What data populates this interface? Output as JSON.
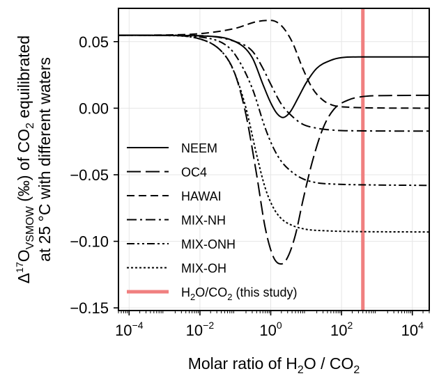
{
  "chart_data": {
    "type": "line",
    "x_scale": "log",
    "xlim": [
      5e-05,
      30000
    ],
    "ylim": [
      -0.152,
      0.075
    ],
    "grid": true,
    "legend_position": "lower-left",
    "x_ticks": [
      {
        "value": 0.0001,
        "base": "10",
        "exp": "−4"
      },
      {
        "value": 0.01,
        "base": "10",
        "exp": "−2"
      },
      {
        "value": 1,
        "base": "10",
        "exp": "0"
      },
      {
        "value": 100,
        "base": "10",
        "exp": "2"
      },
      {
        "value": 10000,
        "base": "10",
        "exp": "4"
      }
    ],
    "y_ticks": [
      {
        "value": 0.05,
        "label": "0.05"
      },
      {
        "value": 0.0,
        "label": "0.00"
      },
      {
        "value": -0.05,
        "label": "−0.05"
      },
      {
        "value": -0.1,
        "label": "−0.10"
      },
      {
        "value": -0.15,
        "label": "−0.15"
      }
    ],
    "xlabel": {
      "pre": "Molar ratio of H",
      "sub1": "2",
      "mid": "O / CO",
      "sub2": "2"
    },
    "ylabel": {
      "line1_pre": "Δ",
      "line1_sup": "17",
      "line1_O": "O",
      "line1_sub": "VSMOW",
      "line1_mid": " (‰) of CO",
      "line1_sub2": "2",
      "line1_post": " equilibrated",
      "line2": "at 25 °C with different waters"
    },
    "series": [
      {
        "name": "NEEM",
        "dash": "none",
        "points": [
          [
            5e-05,
            0.0548
          ],
          [
            0.0001,
            0.0548
          ],
          [
            0.001,
            0.0547
          ],
          [
            0.01,
            0.0543
          ],
          [
            0.1,
            0.05
          ],
          [
            0.3,
            0.038
          ],
          [
            0.6,
            0.018
          ],
          [
            1.0,
            0.004
          ],
          [
            1.5,
            -0.004
          ],
          [
            2.2,
            -0.007
          ],
          [
            3.5,
            -0.003
          ],
          [
            6,
            0.008
          ],
          [
            10,
            0.019
          ],
          [
            20,
            0.03
          ],
          [
            50,
            0.036
          ],
          [
            100,
            0.038
          ],
          [
            300,
            0.0385
          ],
          [
            1000,
            0.0385
          ],
          [
            30000,
            0.0385
          ]
        ]
      },
      {
        "name": "OC4",
        "dash": "20 7",
        "points": [
          [
            5e-05,
            0.0548
          ],
          [
            0.001,
            0.0547
          ],
          [
            0.01,
            0.052
          ],
          [
            0.05,
            0.04
          ],
          [
            0.1,
            0.025
          ],
          [
            0.2,
            -0.005
          ],
          [
            0.4,
            -0.05
          ],
          [
            0.7,
            -0.09
          ],
          [
            1.2,
            -0.112
          ],
          [
            2,
            -0.117
          ],
          [
            3,
            -0.112
          ],
          [
            5,
            -0.095
          ],
          [
            8,
            -0.07
          ],
          [
            15,
            -0.04
          ],
          [
            30,
            -0.015
          ],
          [
            60,
            -0.001
          ],
          [
            150,
            0.006
          ],
          [
            500,
            0.009
          ],
          [
            2000,
            0.0095
          ],
          [
            30000,
            0.0097
          ]
        ]
      },
      {
        "name": "HAWAI",
        "dash": "11 6",
        "points": [
          [
            5e-05,
            0.0548
          ],
          [
            0.001,
            0.055
          ],
          [
            0.01,
            0.056
          ],
          [
            0.1,
            0.06
          ],
          [
            0.4,
            0.065
          ],
          [
            1.0,
            0.066
          ],
          [
            2,
            0.062
          ],
          [
            4,
            0.05
          ],
          [
            8,
            0.03
          ],
          [
            15,
            0.015
          ],
          [
            30,
            0.006
          ],
          [
            60,
            0.002
          ],
          [
            150,
            0.0008
          ],
          [
            500,
            0.0003
          ],
          [
            30000,
            0.0
          ]
        ]
      },
      {
        "name": "MIX-NH",
        "dash": "14 5 3 5",
        "points": [
          [
            5e-05,
            0.0548
          ],
          [
            0.001,
            0.0548
          ],
          [
            0.01,
            0.0545
          ],
          [
            0.1,
            0.05
          ],
          [
            0.3,
            0.043
          ],
          [
            0.6,
            0.03
          ],
          [
            1.0,
            0.018
          ],
          [
            2,
            0.003
          ],
          [
            4,
            -0.006
          ],
          [
            8,
            -0.012
          ],
          [
            20,
            -0.015
          ],
          [
            60,
            -0.0165
          ],
          [
            300,
            -0.017
          ],
          [
            30000,
            -0.0172
          ]
        ]
      },
      {
        "name": "MIX-ONH",
        "dash": "11 4 3 4 3 4",
        "points": [
          [
            5e-05,
            0.0548
          ],
          [
            0.001,
            0.0547
          ],
          [
            0.01,
            0.0535
          ],
          [
            0.05,
            0.048
          ],
          [
            0.1,
            0.04
          ],
          [
            0.3,
            0.015
          ],
          [
            0.7,
            -0.015
          ],
          [
            1.2,
            -0.03
          ],
          [
            2,
            -0.04
          ],
          [
            4,
            -0.048
          ],
          [
            8,
            -0.053
          ],
          [
            20,
            -0.056
          ],
          [
            60,
            -0.057
          ],
          [
            300,
            -0.0575
          ],
          [
            30000,
            -0.058
          ]
        ]
      },
      {
        "name": "MIX-OH",
        "dash": "3 3",
        "points": [
          [
            5e-05,
            0.0548
          ],
          [
            0.001,
            0.0546
          ],
          [
            0.01,
            0.052
          ],
          [
            0.05,
            0.04
          ],
          [
            0.1,
            0.025
          ],
          [
            0.2,
            0.0
          ],
          [
            0.4,
            -0.035
          ],
          [
            0.7,
            -0.06
          ],
          [
            1.2,
            -0.075
          ],
          [
            2,
            -0.083
          ],
          [
            4,
            -0.088
          ],
          [
            10,
            -0.091
          ],
          [
            30,
            -0.092
          ],
          [
            100,
            -0.0925
          ],
          [
            30000,
            -0.093
          ]
        ]
      }
    ],
    "vline": {
      "x": 400,
      "color": "#f08080",
      "legend_pre": "H",
      "legend_sub1": "2",
      "legend_mid": "O/CO",
      "legend_sub2": "2",
      "legend_post": " (this study)"
    }
  }
}
